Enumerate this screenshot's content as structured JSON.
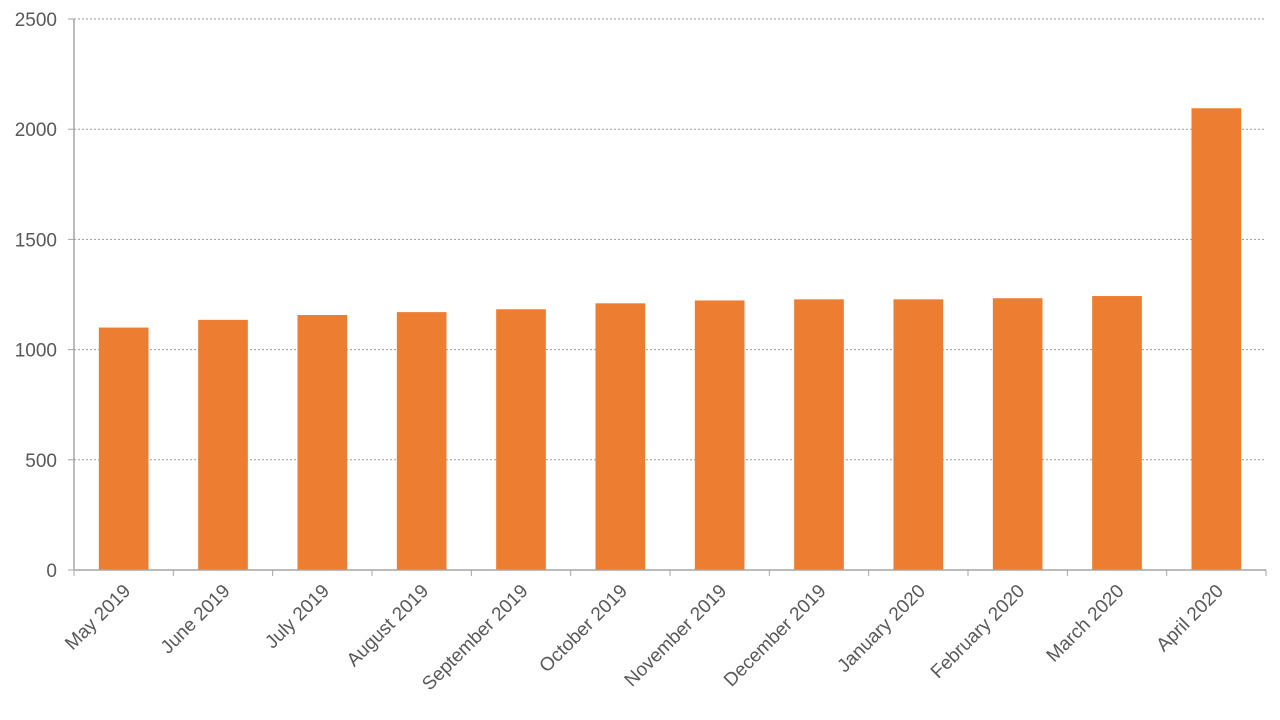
{
  "chart_data": {
    "type": "bar",
    "categories": [
      "May 2019",
      "June 2019",
      "July 2019",
      "August 2019",
      "September 2019",
      "October 2019",
      "November 2019",
      "December 2019",
      "January 2020",
      "February 2020",
      "March 2020",
      "April 2020"
    ],
    "series": [
      {
        "values": [
          1100,
          1135,
          1157,
          1170,
          1183,
          1210,
          1223,
          1228,
          1228,
          1233,
          1243,
          2095
        ],
        "color": "#ED7D31"
      }
    ],
    "ylim": [
      0,
      2500
    ],
    "yticks": [
      0,
      500,
      1000,
      1500,
      2000,
      2500
    ],
    "grid": true,
    "legend": "none"
  }
}
